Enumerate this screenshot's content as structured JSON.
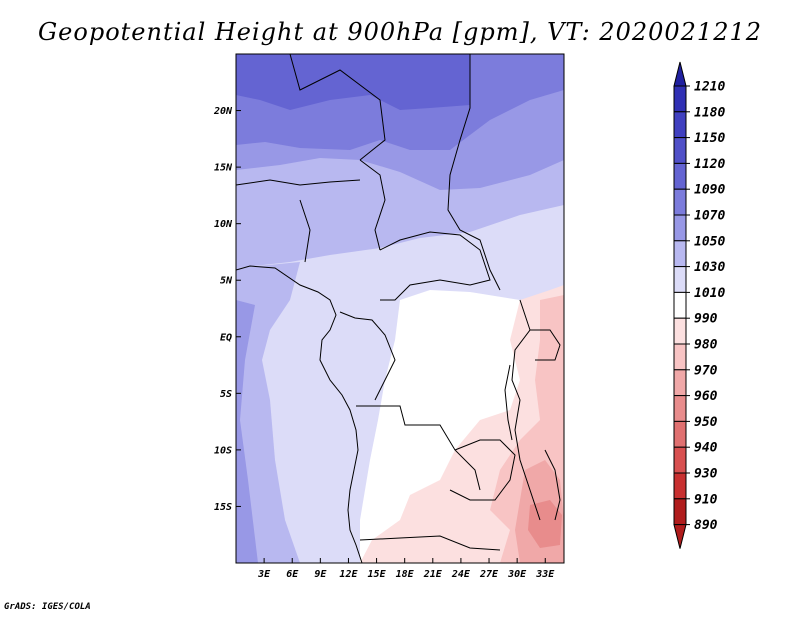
{
  "title": "Geopotential Height at 900hPa [gpm], VT: 2020021212",
  "credit": "GrADS: IGES/COLA",
  "map": {
    "lon_range": [
      0,
      35
    ],
    "lat_range": [
      -20,
      25
    ],
    "lat_ticks": [
      {
        "label": "20N",
        "value": 20
      },
      {
        "label": "15N",
        "value": 15
      },
      {
        "label": "10N",
        "value": 10
      },
      {
        "label": "5N",
        "value": 5
      },
      {
        "label": "EQ",
        "value": 0
      },
      {
        "label": "5S",
        "value": -5
      },
      {
        "label": "10S",
        "value": -10
      },
      {
        "label": "15S",
        "value": -15
      }
    ],
    "lon_ticks": [
      {
        "label": "3E",
        "value": 3
      },
      {
        "label": "6E",
        "value": 6
      },
      {
        "label": "9E",
        "value": 9
      },
      {
        "label": "12E",
        "value": 12
      },
      {
        "label": "15E",
        "value": 15
      },
      {
        "label": "18E",
        "value": 18
      },
      {
        "label": "21E",
        "value": 21
      },
      {
        "label": "24E",
        "value": 24
      },
      {
        "label": "27E",
        "value": 27
      },
      {
        "label": "30E",
        "value": 30
      },
      {
        "label": "33E",
        "value": 33
      }
    ]
  },
  "colorbar": {
    "levels": [
      "1210",
      "1180",
      "1150",
      "1120",
      "1090",
      "1070",
      "1050",
      "1030",
      "1010",
      "990",
      "980",
      "970",
      "960",
      "950",
      "940",
      "930",
      "910",
      "890"
    ],
    "colors": [
      "#2020a0",
      "#3030b4",
      "#4040c0",
      "#5050c8",
      "#6464d2",
      "#7c7cdc",
      "#9898e6",
      "#b8b8f0",
      "#dcdcf8",
      "#ffffff",
      "#fce0e0",
      "#f8c4c4",
      "#f0a8a8",
      "#e88c8c",
      "#e07070",
      "#d85050",
      "#c83030",
      "#b01c1c"
    ]
  }
}
